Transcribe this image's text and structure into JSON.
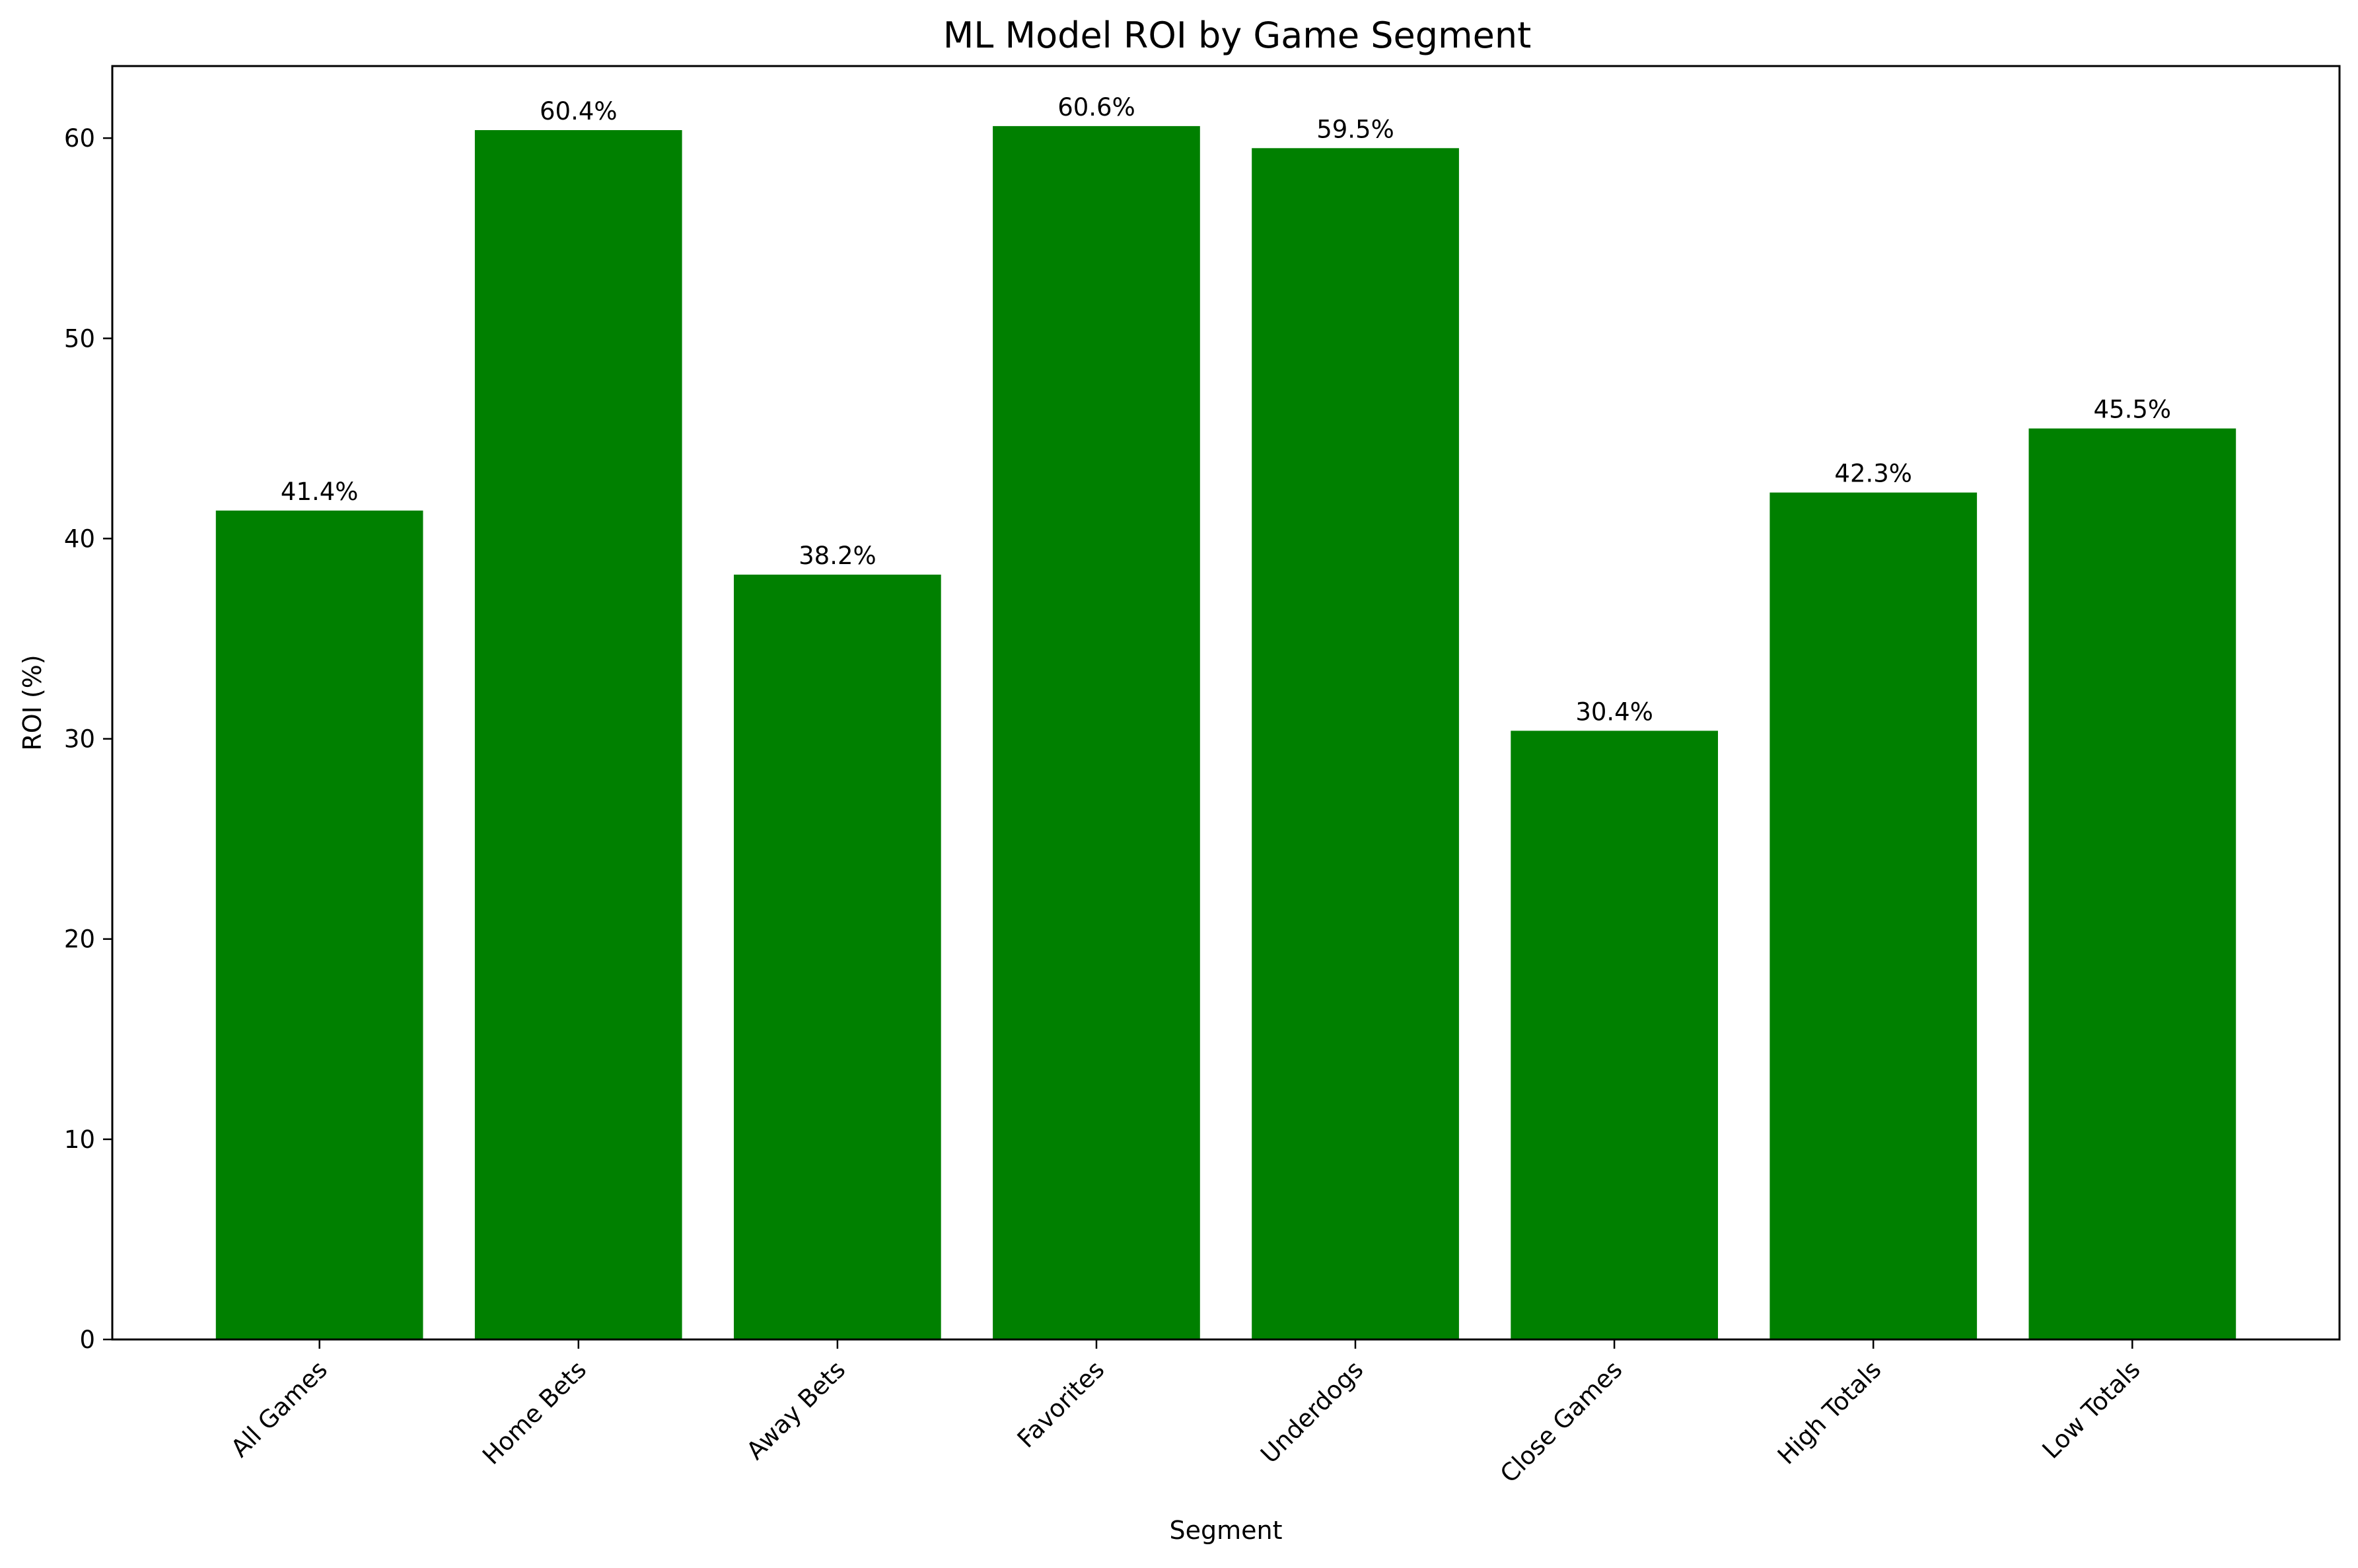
{
  "chart_data": {
    "type": "bar",
    "title": "ML Model ROI by Game Segment",
    "xlabel": "Segment",
    "ylabel": "ROI (%)",
    "categories": [
      "All Games",
      "Home Bets",
      "Away Bets",
      "Favorites",
      "Underdogs",
      "Close Games",
      "High Totals",
      "Low Totals"
    ],
    "values": [
      41.4,
      60.4,
      38.2,
      60.6,
      59.5,
      30.4,
      42.3,
      45.5
    ],
    "data_labels": [
      "41.4%",
      "60.4%",
      "38.2%",
      "60.6%",
      "59.5%",
      "30.4%",
      "42.3%",
      "45.5%"
    ],
    "ylim": [
      0,
      63.6
    ],
    "yticks": [
      0,
      10,
      20,
      30,
      40,
      50,
      60
    ],
    "ytick_labels": [
      "0",
      "10",
      "20",
      "30",
      "40",
      "50",
      "60"
    ],
    "bar_color": "#008000",
    "grid": false,
    "legend": "none"
  }
}
